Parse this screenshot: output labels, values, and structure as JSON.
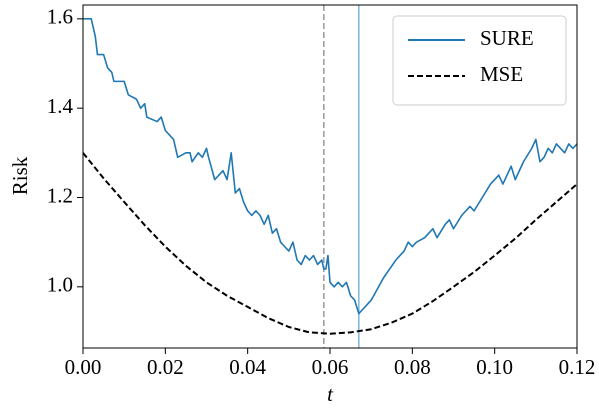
{
  "chart_data": {
    "type": "line",
    "xlabel": "t",
    "ylabel": "Risk",
    "xlim": [
      0,
      0.12
    ],
    "ylim": [
      0.863,
      1.631
    ],
    "xticks": [
      {
        "value": 0,
        "label": "0.00"
      },
      {
        "value": 0.02,
        "label": "0.02"
      },
      {
        "value": 0.04,
        "label": "0.04"
      },
      {
        "value": 0.06,
        "label": "0.06"
      },
      {
        "value": 0.08,
        "label": "0.08"
      },
      {
        "value": 0.1,
        "label": "0.10"
      },
      {
        "value": 0.12,
        "label": "0.12"
      }
    ],
    "yticks": [
      {
        "value": 1,
        "label": "1.0"
      },
      {
        "value": 1.2,
        "label": "1.2"
      },
      {
        "value": 1.4,
        "label": "1.4"
      },
      {
        "value": 1.6,
        "label": "1.6"
      }
    ],
    "legend": "upper right",
    "vlines": [
      {
        "x": 0.0585,
        "color": "#999999",
        "dashed": true
      },
      {
        "x": 0.067,
        "color": "#7fb5d5",
        "dashed": false
      }
    ],
    "series": [
      {
        "name": "SURE",
        "color": "#1f77b4",
        "dashed": false,
        "x": [
          0,
          0.002,
          0.003,
          0.0035,
          0.005,
          0.006,
          0.007,
          0.0075,
          0.01,
          0.011,
          0.013,
          0.014,
          0.015,
          0.0155,
          0.018,
          0.019,
          0.02,
          0.022,
          0.023,
          0.025,
          0.026,
          0.0265,
          0.028,
          0.029,
          0.03,
          0.0305,
          0.032,
          0.034,
          0.035,
          0.036,
          0.037,
          0.038,
          0.039,
          0.04,
          0.041,
          0.042,
          0.043,
          0.044,
          0.045,
          0.046,
          0.047,
          0.048,
          0.049,
          0.05,
          0.051,
          0.052,
          0.053,
          0.054,
          0.055,
          0.056,
          0.057,
          0.058,
          0.0585,
          0.059,
          0.0595,
          0.06,
          0.061,
          0.062,
          0.063,
          0.064,
          0.065,
          0.066,
          0.067,
          0.07,
          0.073,
          0.076,
          0.078,
          0.079,
          0.08,
          0.081,
          0.083,
          0.084,
          0.085,
          0.086,
          0.088,
          0.089,
          0.09,
          0.092,
          0.094,
          0.095,
          0.097,
          0.099,
          0.101,
          0.102,
          0.104,
          0.105,
          0.107,
          0.109,
          0.11,
          0.111,
          0.112,
          0.113,
          0.114,
          0.115,
          0.117,
          0.118,
          0.119,
          0.12
        ],
        "values": [
          1.6,
          1.6,
          1.56,
          1.52,
          1.52,
          1.49,
          1.48,
          1.46,
          1.46,
          1.43,
          1.42,
          1.4,
          1.41,
          1.38,
          1.37,
          1.38,
          1.35,
          1.33,
          1.29,
          1.3,
          1.3,
          1.28,
          1.3,
          1.29,
          1.31,
          1.29,
          1.24,
          1.26,
          1.24,
          1.3,
          1.21,
          1.22,
          1.19,
          1.17,
          1.16,
          1.17,
          1.16,
          1.14,
          1.16,
          1.12,
          1.13,
          1.1,
          1.09,
          1.08,
          1.1,
          1.06,
          1.05,
          1.07,
          1.06,
          1.07,
          1.05,
          1.06,
          1.04,
          1.04,
          1.07,
          1.01,
          1.0,
          1.01,
          1.0,
          1.01,
          0.98,
          0.97,
          0.94,
          0.97,
          1.02,
          1.06,
          1.08,
          1.1,
          1.09,
          1.1,
          1.11,
          1.12,
          1.13,
          1.11,
          1.14,
          1.15,
          1.13,
          1.16,
          1.18,
          1.17,
          1.2,
          1.23,
          1.25,
          1.23,
          1.27,
          1.24,
          1.28,
          1.31,
          1.33,
          1.28,
          1.29,
          1.31,
          1.3,
          1.32,
          1.3,
          1.32,
          1.31,
          1.32
        ]
      },
      {
        "name": "MSE",
        "color": "#000000",
        "dashed": true,
        "x": [
          0,
          0.005,
          0.01,
          0.015,
          0.02,
          0.025,
          0.03,
          0.035,
          0.04,
          0.045,
          0.05,
          0.055,
          0.06,
          0.065,
          0.07,
          0.075,
          0.08,
          0.085,
          0.09,
          0.095,
          0.1,
          0.105,
          0.11,
          0.115,
          0.12
        ],
        "values": [
          1.3,
          1.243,
          1.19,
          1.138,
          1.09,
          1.047,
          1.01,
          0.98,
          0.955,
          0.93,
          0.91,
          0.898,
          0.895,
          0.898,
          0.905,
          0.92,
          0.94,
          0.968,
          1.0,
          1.033,
          1.07,
          1.108,
          1.15,
          1.19,
          1.23
        ]
      }
    ]
  }
}
